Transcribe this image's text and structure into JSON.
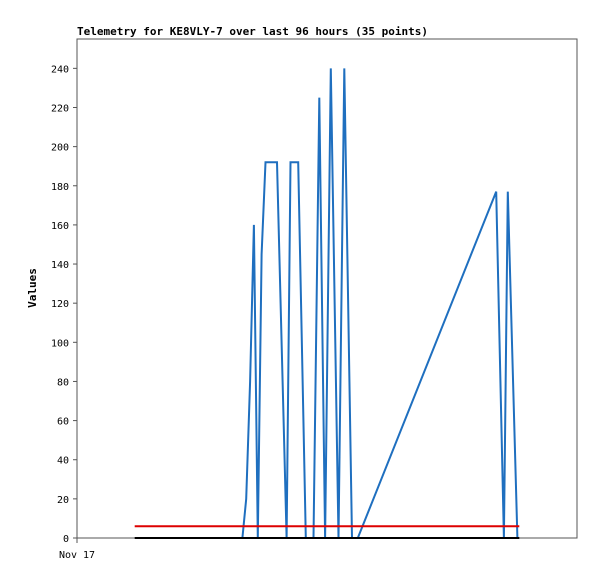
{
  "chart_data": {
    "type": "line",
    "title": "Telemetry for KE8VLY-7 over last 96 hours (35 points)",
    "ylabel": "Values",
    "xlabel": "",
    "x_tick_labels": [
      "Nov 17"
    ],
    "ylim": [
      0,
      255
    ],
    "y_ticks": [
      0,
      20,
      40,
      60,
      80,
      100,
      120,
      140,
      160,
      180,
      200,
      220,
      240
    ],
    "grid": false,
    "legend": "none",
    "series": [
      {
        "color": "#1f6fbf",
        "points": [
          [
            8.6,
            0
          ],
          [
            8.8,
            20
          ],
          [
            9.0,
            80
          ],
          [
            9.2,
            160
          ],
          [
            9.4,
            0
          ],
          [
            9.6,
            145
          ],
          [
            9.8,
            192
          ],
          [
            10.4,
            192
          ],
          [
            10.9,
            0
          ],
          [
            11.1,
            192
          ],
          [
            11.5,
            192
          ],
          [
            11.9,
            0
          ],
          [
            12.3,
            0
          ],
          [
            12.6,
            225
          ],
          [
            12.9,
            0
          ],
          [
            13.2,
            240
          ],
          [
            13.6,
            0
          ],
          [
            13.9,
            240
          ],
          [
            14.3,
            0
          ],
          [
            14.6,
            0
          ],
          [
            21.8,
            177
          ],
          [
            22.2,
            0
          ],
          [
            22.4,
            177
          ],
          [
            22.9,
            0
          ]
        ]
      },
      {
        "color": "#dd0000",
        "points": [
          [
            3.0,
            6
          ],
          [
            23.0,
            6
          ]
        ]
      },
      {
        "color": "#000000",
        "points": [
          [
            3.0,
            0
          ],
          [
            23.0,
            0
          ]
        ]
      }
    ]
  }
}
